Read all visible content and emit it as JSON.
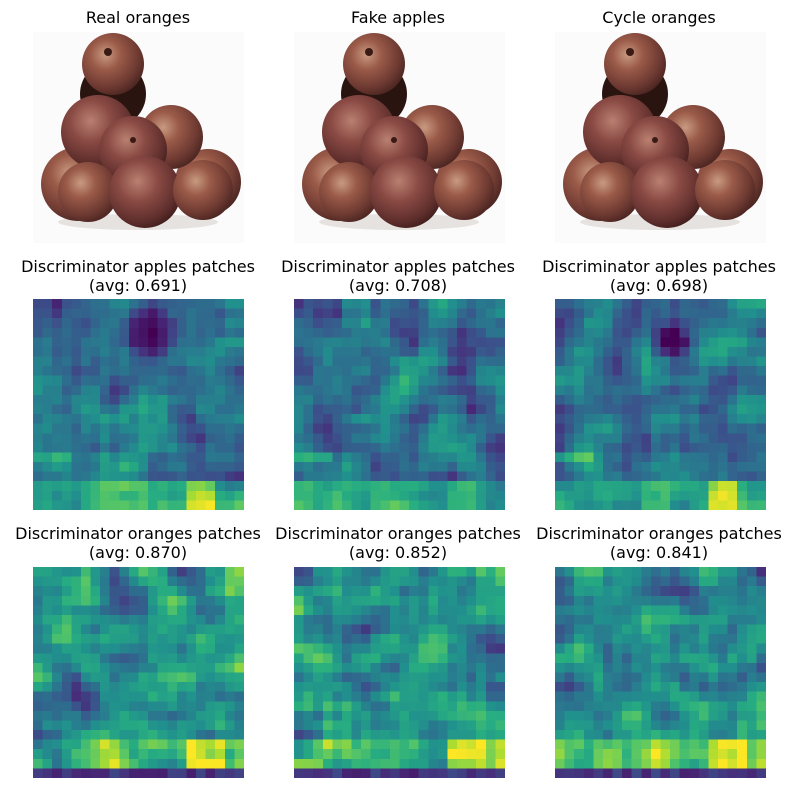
{
  "figure": {
    "rows": [
      {
        "kind": "image",
        "panels": [
          {
            "title": "Real oranges"
          },
          {
            "title": "Fake apples"
          },
          {
            "title": "Cycle oranges"
          }
        ]
      },
      {
        "kind": "heatmap",
        "panels": [
          {
            "title": "Discriminator apples patches",
            "avg_text": "(avg: 0.691)",
            "avg": 0.691
          },
          {
            "title": "Discriminator apples patches",
            "avg_text": "(avg: 0.708)",
            "avg": 0.708
          },
          {
            "title": "Discriminator apples patches",
            "avg_text": "(avg: 0.698)",
            "avg": 0.698
          }
        ]
      },
      {
        "kind": "heatmap",
        "panels": [
          {
            "title": "Discriminator oranges patches",
            "avg_text": "(avg: 0.870)",
            "avg": 0.87
          },
          {
            "title": "Discriminator oranges patches",
            "avg_text": "(avg: 0.852)",
            "avg": 0.852
          },
          {
            "title": "Discriminator oranges patches",
            "avg_text": "(avg: 0.841)",
            "avg": 0.841
          }
        ]
      }
    ],
    "colormap": "viridis",
    "colors": {
      "background": "#ffffff",
      "fruit_dark": "#5a2a24",
      "fruit_mid": "#8a4a3a",
      "fruit_light": "#b98a6a"
    }
  }
}
